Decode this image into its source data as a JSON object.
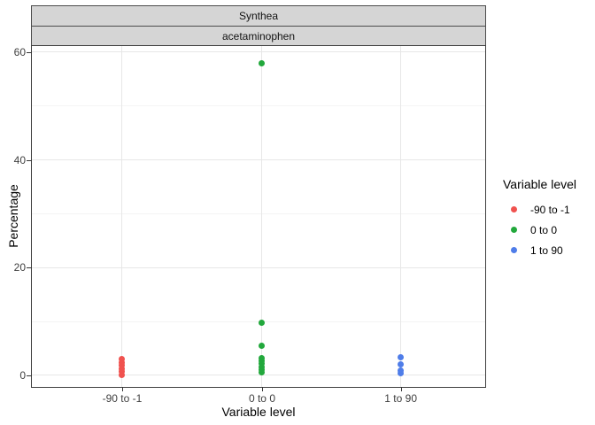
{
  "window": {
    "background": "#ffffff"
  },
  "figure": {
    "facet_strips": [
      {
        "label": "Synthea"
      },
      {
        "label": "acetaminophen"
      }
    ],
    "x_axis": {
      "title": "Variable level",
      "tick_labels": [
        "-90 to -1",
        "0 to 0",
        "1 to 90"
      ]
    },
    "y_axis": {
      "title": "Percentage",
      "tick_labels": [
        "0",
        "20",
        "40",
        "60"
      ]
    },
    "legend": {
      "title": "Variable level",
      "items": [
        {
          "label": "-90 to -1",
          "color": "#f0524f"
        },
        {
          "label": "0 to 0",
          "color": "#22a83c"
        },
        {
          "label": "1 to 90",
          "color": "#4f7de9"
        }
      ]
    },
    "colors": {
      "strip_fill": "#d5d5d5",
      "strip_border": "#4d4d4d",
      "panel_border": "#3f3f3f",
      "grid_major": "#e7e7e7",
      "grid_minor": "#f4f4f4",
      "tick": "#333333"
    }
  },
  "chart_data": {
    "type": "scatter",
    "title": "Synthea",
    "subtitle": "acetaminophen",
    "xlabel": "Variable level",
    "ylabel": "Percentage",
    "categories": [
      "-90 to -1",
      "0 to 0",
      "1 to 90"
    ],
    "ylim": [
      -2.14,
      61.14
    ],
    "y_major_ticks": [
      0,
      20,
      40,
      60
    ],
    "y_minor_gridlines": [
      10,
      30,
      50
    ],
    "grid": true,
    "legend_position": "right",
    "series": [
      {
        "name": "-90 to -1",
        "category": "-90 to -1",
        "color": "#f0524f",
        "values": [
          0.1,
          0.7,
          1.3,
          1.9,
          2.4,
          3.0
        ]
      },
      {
        "name": "0 to 0",
        "category": "0 to 0",
        "color": "#22a83c",
        "values": [
          58.0,
          9.8,
          5.5,
          3.25,
          2.7,
          2.15,
          1.6,
          1.1,
          0.55
        ]
      },
      {
        "name": "1 to 90",
        "category": "1 to 90",
        "color": "#4f7de9",
        "values": [
          3.3,
          2.1,
          0.9,
          0.45
        ]
      }
    ]
  }
}
